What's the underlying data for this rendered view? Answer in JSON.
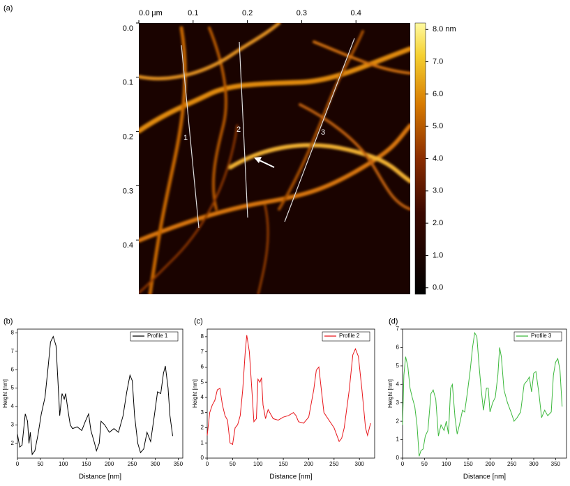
{
  "image": {
    "label": "(a)",
    "lim": [
      0,
      0.5
    ],
    "xticks": [
      {
        "value": 0,
        "label": "0.0 µm"
      },
      0.1,
      0.2,
      0.3,
      0.4
    ],
    "yticks": [
      {
        "value": 0,
        "label": "0.0"
      },
      0.1,
      0.2,
      0.3,
      0.4
    ],
    "line_labels": [
      "1",
      "2",
      "3"
    ],
    "colorbar": {
      "lim": [
        -0.2,
        8.2
      ],
      "ticks": [
        {
          "value": 8,
          "label": "8.0 nm"
        },
        {
          "value": 7,
          "label": "7.0"
        },
        {
          "value": 6,
          "label": "6.0"
        },
        {
          "value": 5,
          "label": "5.0"
        },
        {
          "value": 4,
          "label": "4.0"
        },
        {
          "value": 3,
          "label": "3.0"
        },
        {
          "value": 2,
          "label": "2.0"
        },
        {
          "value": 1,
          "label": "1.0"
        },
        {
          "value": 0,
          "label": "0.0"
        }
      ]
    }
  },
  "chart_data": [
    {
      "type": "line",
      "label": "(b)",
      "x_label": "Distance [nm]",
      "y_label": "Height [nm]",
      "xlim": [
        0,
        360
      ],
      "ylim": [
        1.2,
        8.2
      ],
      "xticks": [
        0,
        50,
        100,
        150,
        200,
        250,
        300,
        350
      ],
      "yticks": [
        2,
        3,
        4,
        5,
        6,
        7,
        8
      ],
      "series": [
        {
          "name": "Profile 1",
          "color": "#000000",
          "x": [
            0,
            5,
            10,
            17,
            22,
            25,
            28,
            32,
            38,
            45,
            52,
            60,
            67,
            72,
            78,
            84,
            88,
            92,
            97,
            102,
            105,
            110,
            115,
            120,
            130,
            140,
            148,
            155,
            160,
            168,
            172,
            178,
            182,
            190,
            200,
            210,
            220,
            230,
            238,
            245,
            250,
            255,
            262,
            268,
            275,
            282,
            290,
            298,
            305,
            312,
            318,
            322,
            328,
            332,
            338
          ],
          "values": [
            2.5,
            1.8,
            1.9,
            3.6,
            3.2,
            2.0,
            2.6,
            1.4,
            1.6,
            2.5,
            3.6,
            4.5,
            6.2,
            7.5,
            7.8,
            7.3,
            5.5,
            3.5,
            4.7,
            4.4,
            4.7,
            3.8,
            3.0,
            2.8,
            2.9,
            2.7,
            3.2,
            3.6,
            2.7,
            2.0,
            1.6,
            2.0,
            3.2,
            3.0,
            2.6,
            2.8,
            2.6,
            3.5,
            4.8,
            5.7,
            5.4,
            3.5,
            2.0,
            1.5,
            1.7,
            2.6,
            2.1,
            3.5,
            4.8,
            4.7,
            5.8,
            6.2,
            5.0,
            3.5,
            2.4
          ]
        }
      ]
    },
    {
      "type": "line",
      "label": "(c)",
      "x_label": "Distance [nm]",
      "y_label": "Height [nm]",
      "xlim": [
        0,
        330
      ],
      "ylim": [
        0,
        8.5
      ],
      "xticks": [
        0,
        50,
        100,
        150,
        200,
        250,
        300
      ],
      "yticks": [
        0,
        1,
        2,
        3,
        4,
        5,
        6,
        7,
        8
      ],
      "series": [
        {
          "name": "Profile 2",
          "color": "#e8161b",
          "x": [
            0,
            5,
            10,
            15,
            20,
            25,
            30,
            35,
            40,
            45,
            50,
            55,
            60,
            65,
            70,
            75,
            78,
            83,
            88,
            92,
            97,
            100,
            104,
            107,
            110,
            115,
            120,
            130,
            140,
            150,
            160,
            170,
            175,
            180,
            190,
            200,
            210,
            215,
            220,
            225,
            230,
            240,
            250,
            260,
            265,
            270,
            280,
            287,
            292,
            298,
            305,
            312,
            316,
            322
          ],
          "values": [
            1.5,
            3.0,
            3.5,
            3.8,
            4.5,
            4.6,
            3.5,
            2.8,
            2.5,
            1.0,
            0.9,
            2.0,
            2.2,
            2.8,
            4.5,
            7.0,
            8.1,
            7.0,
            4.5,
            2.4,
            2.6,
            5.2,
            5.0,
            5.3,
            3.5,
            2.6,
            3.2,
            2.6,
            2.5,
            2.7,
            2.8,
            3.0,
            2.8,
            2.4,
            2.3,
            2.7,
            4.5,
            5.8,
            6.0,
            4.5,
            3.0,
            2.5,
            2.0,
            1.1,
            1.3,
            2.0,
            4.5,
            6.8,
            7.2,
            6.7,
            4.5,
            2.0,
            1.5,
            2.3
          ]
        }
      ]
    },
    {
      "type": "line",
      "label": "(d)",
      "x_label": "Distance [nm]",
      "y_label": "Height [nm]",
      "xlim": [
        0,
        375
      ],
      "ylim": [
        0,
        7
      ],
      "xticks": [
        0,
        50,
        100,
        150,
        200,
        250,
        300,
        350
      ],
      "yticks": [
        0,
        1,
        2,
        3,
        4,
        5,
        6,
        7
      ],
      "series": [
        {
          "name": "Profile 3",
          "color": "#3cb83c",
          "x": [
            0,
            3,
            7,
            12,
            17,
            22,
            28,
            33,
            38,
            42,
            47,
            52,
            58,
            65,
            70,
            76,
            82,
            88,
            95,
            100,
            105,
            110,
            114,
            120,
            125,
            130,
            137,
            142,
            148,
            155,
            160,
            165,
            170,
            175,
            180,
            185,
            192,
            196,
            200,
            206,
            212,
            218,
            222,
            226,
            232,
            240,
            248,
            255,
            262,
            270,
            278,
            285,
            290,
            295,
            300,
            305,
            312,
            318,
            325,
            332,
            340,
            345,
            350,
            355,
            360,
            365
          ],
          "values": [
            1.8,
            4.5,
            5.5,
            5.0,
            3.8,
            3.3,
            2.8,
            1.8,
            0.1,
            0.4,
            0.5,
            1.2,
            1.5,
            3.5,
            3.7,
            3.2,
            1.2,
            1.8,
            1.5,
            2.0,
            1.3,
            3.8,
            4.0,
            2.2,
            1.3,
            1.8,
            2.6,
            2.5,
            3.5,
            4.8,
            6.0,
            6.8,
            6.6,
            5.0,
            3.7,
            2.6,
            3.8,
            3.8,
            2.5,
            3.0,
            3.3,
            4.5,
            6.0,
            5.5,
            3.7,
            3.0,
            2.5,
            2.0,
            2.2,
            2.5,
            4.0,
            4.2,
            4.4,
            3.6,
            4.6,
            4.7,
            3.5,
            2.2,
            2.6,
            2.3,
            2.5,
            4.5,
            5.2,
            5.4,
            4.8,
            2.8
          ]
        }
      ]
    }
  ]
}
